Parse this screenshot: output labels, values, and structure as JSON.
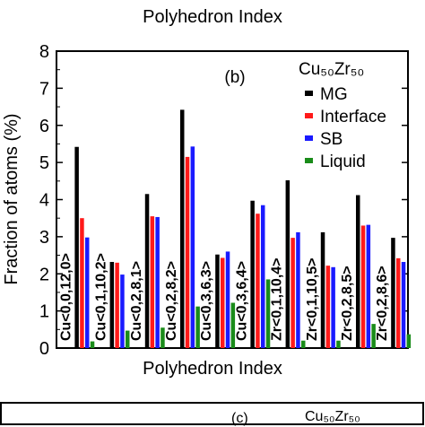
{
  "header": {
    "top_title": "Polyhedron Index",
    "bottom_title": "Polyhedron Index",
    "next_panel_fragment_a": "(c)",
    "next_panel_fragment_b": "Cu₅₀Zr₅₀"
  },
  "chart_data": {
    "type": "bar",
    "panel_label": "(b)",
    "legend_title": "Cu₅₀Zr₅₀",
    "legend_position": "top-right",
    "ylabel": "Fraction of atoms (%)",
    "xlabel": "Polyhedron Index",
    "ylim": [
      0,
      8
    ],
    "yticks": [
      "0",
      "1",
      "2",
      "3",
      "4",
      "5",
      "6",
      "7",
      "8"
    ],
    "categories": [
      "Cu<0,0,12,0>",
      "Cu<0,1,10,2>",
      "Cu<0,2,8,1>",
      "Cu<0,2,8,2>",
      "Cu<0,3,6,3>",
      "Cu<0,3,6,4>",
      "Zr<0,1,10,4>",
      "Zr<0,1,10,5>",
      "Zr<0,2,8,5>",
      "Zr<0,2,8,6>"
    ],
    "series": [
      {
        "name": "MG",
        "color": "#000000",
        "values": [
          5.42,
          2.32,
          4.15,
          6.42,
          2.52,
          3.97,
          4.52,
          3.12,
          4.12,
          2.97
        ]
      },
      {
        "name": "Interface",
        "color": "#ff1a1a",
        "values": [
          3.5,
          2.3,
          3.55,
          5.15,
          2.43,
          3.62,
          2.97,
          2.22,
          3.3,
          2.42
        ]
      },
      {
        "name": "SB",
        "color": "#1a1aff",
        "values": [
          2.98,
          1.98,
          3.53,
          5.43,
          2.6,
          3.85,
          3.12,
          2.18,
          3.32,
          2.32
        ]
      },
      {
        "name": "Liquid",
        "color": "#1a8c1a",
        "values": [
          0.18,
          0.47,
          0.55,
          1.12,
          1.22,
          1.85,
          0.2,
          0.2,
          0.65,
          0.37
        ]
      }
    ]
  }
}
